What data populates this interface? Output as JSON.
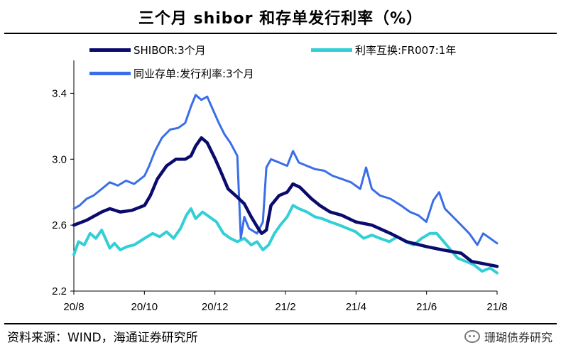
{
  "title": "三个月 shibor 和存单发行利率（%）",
  "source": "资料来源：WIND，海通证券研究所",
  "watermark": "珊瑚债券研究",
  "colors": {
    "shibor": "#0b0b6e",
    "irs": "#33cfd6",
    "ncd": "#3a6ee8"
  },
  "chart_data": {
    "type": "line",
    "title": "三个月 shibor 和存单发行利率（%）",
    "xlabel": "",
    "ylabel": "",
    "x_ticks": [
      "20/8",
      "20/10",
      "20/12",
      "21/2",
      "21/4",
      "21/6",
      "21/8"
    ],
    "y_ticks": [
      "2.2",
      "2.6",
      "3.0",
      "3.4"
    ],
    "ylim": [
      2.2,
      3.6
    ],
    "xlim": [
      "2020-08-01",
      "2021-08-01"
    ],
    "grid": false,
    "legend_position": "top-left",
    "series": [
      {
        "name": "SHIBOR:3个月",
        "color": "#0b0b6e",
        "points": [
          [
            "2020-08-01",
            2.6
          ],
          [
            "2020-08-12",
            2.63
          ],
          [
            "2020-08-25",
            2.68
          ],
          [
            "2020-09-01",
            2.7
          ],
          [
            "2020-09-10",
            2.68
          ],
          [
            "2020-09-20",
            2.69
          ],
          [
            "2020-10-01",
            2.72
          ],
          [
            "2020-10-06",
            2.78
          ],
          [
            "2020-10-12",
            2.88
          ],
          [
            "2020-10-20",
            2.96
          ],
          [
            "2020-10-28",
            3.0
          ],
          [
            "2020-11-05",
            3.0
          ],
          [
            "2020-11-10",
            3.02
          ],
          [
            "2020-11-14",
            3.08
          ],
          [
            "2020-11-19",
            3.13
          ],
          [
            "2020-11-24",
            3.1
          ],
          [
            "2020-12-01",
            3.0
          ],
          [
            "2020-12-06",
            2.92
          ],
          [
            "2020-12-12",
            2.82
          ],
          [
            "2020-12-20",
            2.77
          ],
          [
            "2020-12-26",
            2.73
          ],
          [
            "2021-01-01",
            2.65
          ],
          [
            "2021-01-07",
            2.58
          ],
          [
            "2021-01-10",
            2.55
          ],
          [
            "2021-01-14",
            2.57
          ],
          [
            "2021-01-18",
            2.72
          ],
          [
            "2021-01-25",
            2.78
          ],
          [
            "2021-02-01",
            2.8
          ],
          [
            "2021-02-06",
            2.85
          ],
          [
            "2021-02-12",
            2.83
          ],
          [
            "2021-02-22",
            2.76
          ],
          [
            "2021-03-01",
            2.72
          ],
          [
            "2021-03-10",
            2.68
          ],
          [
            "2021-03-20",
            2.66
          ],
          [
            "2021-04-01",
            2.62
          ],
          [
            "2021-04-15",
            2.6
          ],
          [
            "2021-05-01",
            2.55
          ],
          [
            "2021-05-15",
            2.5
          ],
          [
            "2021-06-01",
            2.47
          ],
          [
            "2021-06-15",
            2.45
          ],
          [
            "2021-07-01",
            2.43
          ],
          [
            "2021-07-10",
            2.38
          ],
          [
            "2021-07-25",
            2.36
          ],
          [
            "2021-08-01",
            2.35
          ]
        ]
      },
      {
        "name": "利率互换:FR007:1年",
        "color": "#33cfd6",
        "points": [
          [
            "2020-08-01",
            2.42
          ],
          [
            "2020-08-05",
            2.5
          ],
          [
            "2020-08-10",
            2.48
          ],
          [
            "2020-08-15",
            2.55
          ],
          [
            "2020-08-20",
            2.52
          ],
          [
            "2020-08-25",
            2.57
          ],
          [
            "2020-09-01",
            2.46
          ],
          [
            "2020-09-05",
            2.49
          ],
          [
            "2020-09-10",
            2.45
          ],
          [
            "2020-09-16",
            2.47
          ],
          [
            "2020-09-22",
            2.48
          ],
          [
            "2020-10-01",
            2.52
          ],
          [
            "2020-10-08",
            2.55
          ],
          [
            "2020-10-14",
            2.53
          ],
          [
            "2020-10-20",
            2.56
          ],
          [
            "2020-10-26",
            2.52
          ],
          [
            "2020-11-01",
            2.58
          ],
          [
            "2020-11-06",
            2.66
          ],
          [
            "2020-11-10",
            2.7
          ],
          [
            "2020-11-14",
            2.64
          ],
          [
            "2020-11-20",
            2.68
          ],
          [
            "2020-11-26",
            2.65
          ],
          [
            "2020-12-02",
            2.62
          ],
          [
            "2020-12-08",
            2.55
          ],
          [
            "2020-12-14",
            2.52
          ],
          [
            "2020-12-20",
            2.5
          ],
          [
            "2020-12-26",
            2.52
          ],
          [
            "2021-01-01",
            2.48
          ],
          [
            "2021-01-06",
            2.5
          ],
          [
            "2021-01-11",
            2.45
          ],
          [
            "2021-01-16",
            2.48
          ],
          [
            "2021-01-21",
            2.55
          ],
          [
            "2021-01-26",
            2.6
          ],
          [
            "2021-02-01",
            2.65
          ],
          [
            "2021-02-06",
            2.72
          ],
          [
            "2021-02-11",
            2.7
          ],
          [
            "2021-02-18",
            2.68
          ],
          [
            "2021-02-25",
            2.65
          ],
          [
            "2021-03-03",
            2.64
          ],
          [
            "2021-03-10",
            2.62
          ],
          [
            "2021-03-18",
            2.6
          ],
          [
            "2021-03-25",
            2.58
          ],
          [
            "2021-04-01",
            2.56
          ],
          [
            "2021-04-08",
            2.52
          ],
          [
            "2021-04-15",
            2.54
          ],
          [
            "2021-04-22",
            2.52
          ],
          [
            "2021-04-30",
            2.5
          ],
          [
            "2021-05-07",
            2.53
          ],
          [
            "2021-05-14",
            2.5
          ],
          [
            "2021-05-21",
            2.48
          ],
          [
            "2021-05-28",
            2.52
          ],
          [
            "2021-06-04",
            2.55
          ],
          [
            "2021-06-10",
            2.55
          ],
          [
            "2021-06-16",
            2.5
          ],
          [
            "2021-06-22",
            2.45
          ],
          [
            "2021-06-28",
            2.4
          ],
          [
            "2021-07-05",
            2.38
          ],
          [
            "2021-07-12",
            2.36
          ],
          [
            "2021-07-19",
            2.32
          ],
          [
            "2021-07-26",
            2.34
          ],
          [
            "2021-08-01",
            2.31
          ]
        ]
      },
      {
        "name": "同业存单:发行利率:3个月",
        "color": "#3a6ee8",
        "points": [
          [
            "2020-08-01",
            2.7
          ],
          [
            "2020-08-06",
            2.72
          ],
          [
            "2020-08-12",
            2.76
          ],
          [
            "2020-08-18",
            2.78
          ],
          [
            "2020-08-25",
            2.82
          ],
          [
            "2020-09-01",
            2.86
          ],
          [
            "2020-09-08",
            2.84
          ],
          [
            "2020-09-15",
            2.87
          ],
          [
            "2020-09-22",
            2.85
          ],
          [
            "2020-10-01",
            2.9
          ],
          [
            "2020-10-05",
            2.96
          ],
          [
            "2020-10-10",
            3.05
          ],
          [
            "2020-10-16",
            3.13
          ],
          [
            "2020-10-23",
            3.18
          ],
          [
            "2020-10-30",
            3.19
          ],
          [
            "2020-11-05",
            3.22
          ],
          [
            "2020-11-10",
            3.32
          ],
          [
            "2020-11-14",
            3.39
          ],
          [
            "2020-11-19",
            3.36
          ],
          [
            "2020-11-24",
            3.38
          ],
          [
            "2020-11-29",
            3.3
          ],
          [
            "2020-12-04",
            3.22
          ],
          [
            "2020-12-09",
            3.15
          ],
          [
            "2020-12-14",
            3.1
          ],
          [
            "2020-12-20",
            3.02
          ],
          [
            "2020-12-23",
            2.52
          ],
          [
            "2020-12-26",
            2.65
          ],
          [
            "2020-12-30",
            2.58
          ],
          [
            "2021-01-06",
            2.55
          ],
          [
            "2021-01-11",
            2.62
          ],
          [
            "2021-01-14",
            2.95
          ],
          [
            "2021-01-18",
            3.0
          ],
          [
            "2021-01-25",
            2.98
          ],
          [
            "2021-02-01",
            2.96
          ],
          [
            "2021-02-06",
            3.05
          ],
          [
            "2021-02-11",
            2.98
          ],
          [
            "2021-02-18",
            2.96
          ],
          [
            "2021-02-25",
            2.94
          ],
          [
            "2021-03-05",
            2.93
          ],
          [
            "2021-03-12",
            2.9
          ],
          [
            "2021-03-20",
            2.88
          ],
          [
            "2021-03-28",
            2.86
          ],
          [
            "2021-04-05",
            2.82
          ],
          [
            "2021-04-10",
            2.95
          ],
          [
            "2021-04-15",
            2.82
          ],
          [
            "2021-04-22",
            2.78
          ],
          [
            "2021-05-01",
            2.76
          ],
          [
            "2021-05-10",
            2.72
          ],
          [
            "2021-05-18",
            2.68
          ],
          [
            "2021-05-25",
            2.66
          ],
          [
            "2021-06-01",
            2.62
          ],
          [
            "2021-06-07",
            2.75
          ],
          [
            "2021-06-12",
            2.8
          ],
          [
            "2021-06-17",
            2.7
          ],
          [
            "2021-06-24",
            2.65
          ],
          [
            "2021-07-01",
            2.6
          ],
          [
            "2021-07-08",
            2.55
          ],
          [
            "2021-07-15",
            2.48
          ],
          [
            "2021-07-20",
            2.55
          ],
          [
            "2021-07-26",
            2.52
          ],
          [
            "2021-08-01",
            2.49
          ]
        ]
      }
    ]
  }
}
